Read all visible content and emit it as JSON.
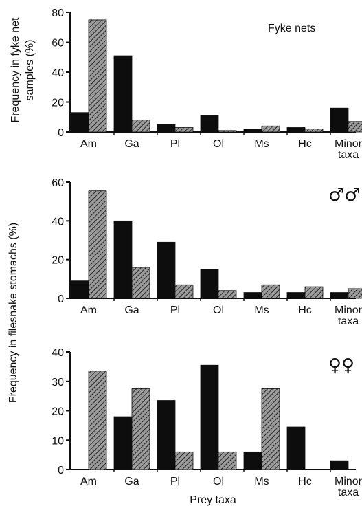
{
  "figure": {
    "ylabel_top": [
      "Frequency in fyke net",
      "samples (%)"
    ],
    "ylabel_bottom": "Frequency in filesnake stomachs (%)",
    "xlabel": "Prey taxa"
  },
  "colors": {
    "solid": "#0d0d0d",
    "hatched_fill": "#9a9a9a",
    "hatched_line": "#2a2a2a",
    "axis": "#111111"
  },
  "chart_data": [
    {
      "type": "bar",
      "panel_label": "Fyke nets",
      "categories": [
        "Am",
        "Ga",
        "Pl",
        "Ol",
        "Ms",
        "Hc",
        "Minor\ntaxa"
      ],
      "ylim": [
        0,
        80
      ],
      "yticks": [
        0,
        20,
        40,
        60,
        80
      ],
      "series": [
        {
          "style": "solid",
          "values": [
            13,
            51,
            5,
            11,
            2,
            3,
            16
          ]
        },
        {
          "style": "hatched",
          "values": [
            75,
            8,
            3,
            1,
            4,
            2,
            7
          ]
        }
      ],
      "grid": false
    },
    {
      "type": "bar",
      "panel_label": "♂♂",
      "categories": [
        "Am",
        "Ga",
        "Pl",
        "Ol",
        "Ms",
        "Hc",
        "Minor\ntaxa"
      ],
      "ylim": [
        0,
        60
      ],
      "yticks": [
        0,
        20,
        40,
        60
      ],
      "series": [
        {
          "style": "solid",
          "values": [
            9,
            40,
            29,
            15,
            3,
            3,
            3
          ]
        },
        {
          "style": "hatched",
          "values": [
            55.5,
            16,
            7,
            4,
            7,
            6,
            5
          ]
        }
      ],
      "grid": false
    },
    {
      "type": "bar",
      "panel_label": "♀♀",
      "categories": [
        "Am",
        "Ga",
        "Pl",
        "Ol",
        "Ms",
        "Hc",
        "Minor\ntaxa"
      ],
      "ylim": [
        0,
        40
      ],
      "yticks": [
        0,
        10,
        20,
        30,
        40
      ],
      "series": [
        {
          "style": "solid",
          "values": [
            0,
            18,
            23.5,
            35.5,
            6,
            14.5,
            3
          ]
        },
        {
          "style": "hatched",
          "values": [
            33.5,
            27.5,
            6,
            6,
            27.5,
            0,
            0
          ]
        }
      ],
      "grid": false
    }
  ]
}
